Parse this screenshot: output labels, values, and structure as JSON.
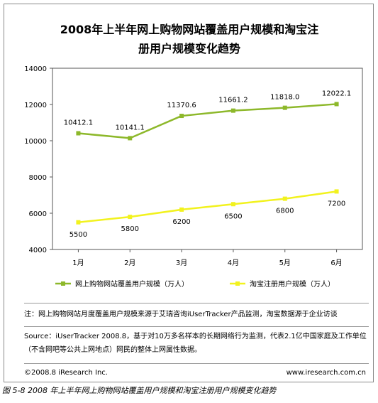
{
  "chart_data": {
    "type": "line",
    "title_line1": "2008年上半年网上购物网站覆盖用户规模和淘宝注",
    "title_line2": "册用户规模变化趋势",
    "categories": [
      "1月",
      "2月",
      "3月",
      "4月",
      "5月",
      "6月"
    ],
    "ylim": [
      4000,
      14000
    ],
    "yticks": [
      "4000",
      "6000",
      "8000",
      "10000",
      "12000",
      "14000"
    ],
    "grid": false,
    "legend_position": "bottom",
    "series": [
      {
        "name": "网上购物网站覆盖用户规模（万人）",
        "values": [
          10412.1,
          10141.1,
          11370.6,
          11661.2,
          11818.0,
          12022.1
        ],
        "labels": [
          "10412.1",
          "10141.1",
          "11370.6",
          "11661.2",
          "11818.0",
          "12022.1"
        ],
        "color": "#8db82a"
      },
      {
        "name": "淘宝注册用户规模（万人）",
        "values": [
          5500,
          5800,
          6200,
          6500,
          6800,
          7200
        ],
        "labels": [
          "5500",
          "5800",
          "6200",
          "6500",
          "6800",
          "7200"
        ],
        "color": "#f2f21e"
      }
    ]
  },
  "notes": {
    "note": "注：网上购物网站月度覆盖用户规模来源于艾瑞咨询iUserTracker产品监测，淘宝数据源于企业访谈",
    "source": "Source：iUserTracker 2008.8，基于对10万多名样本的长期网络行为监测，代表2.1亿中国家庭及工作单位（不含网吧等公共上网地点）网民的整体上网属性数据。"
  },
  "footer": {
    "copyright": "©2008.8 iResearch Inc.",
    "website": "www.iresearch.com.cn"
  },
  "caption": "图 5-8 2008 年上半年网上购物网站覆盖用户规模和淘宝注册用户规模变化趋势"
}
